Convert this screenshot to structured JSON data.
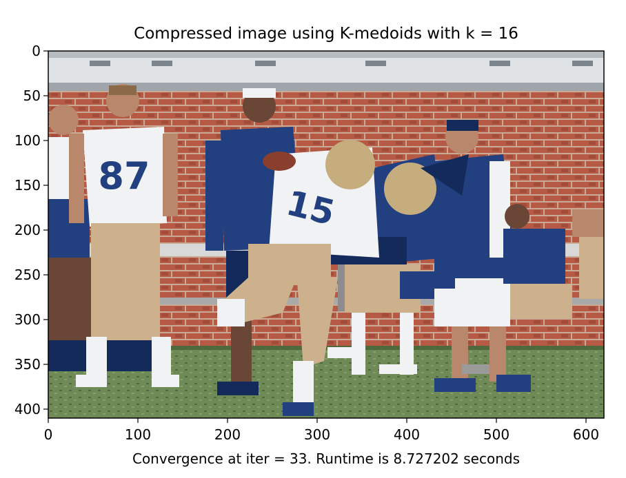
{
  "chart_data": {
    "type": "image",
    "title": "Compressed image using K-medoids with k = 16",
    "xlabel": "Convergence at iter = 33. Runtime is 8.727202 seconds",
    "ylabel": "",
    "xlim": [
      0,
      620
    ],
    "ylim": [
      410,
      0
    ],
    "x_ticks": [
      0,
      100,
      200,
      300,
      400,
      500,
      600
    ],
    "y_ticks": [
      0,
      50,
      100,
      150,
      200,
      250,
      300,
      350,
      400
    ],
    "x_tick_labels": [
      "0",
      "100",
      "200",
      "300",
      "400",
      "500",
      "600"
    ],
    "y_tick_labels": [
      "0",
      "50",
      "100",
      "150",
      "200",
      "250",
      "300",
      "350",
      "400"
    ],
    "image_content": "posterized photograph of a football practice: player #15 in white jersey tackled by a player in navy, coaches and player #87 in background, brick wall behind, green turf",
    "jersey_numbers": [
      "87",
      "15"
    ],
    "palette": {
      "sky": "#dfe3e6",
      "wall_cap": "#b7bcc0",
      "brick": "#b75a45",
      "brick_dark": "#8a3f2e",
      "mortar": "#c9aa94",
      "grass": "#6f8a56",
      "grass_dark": "#4e6a3c",
      "navy": "#22407f",
      "navy_dark": "#142a5a",
      "white": "#f1f2f4",
      "khaki": "#cdb08c",
      "skin": "#b9876b",
      "skin_dark": "#6a4636",
      "gold": "#c6ad7e",
      "gray": "#9a9a9a"
    }
  }
}
